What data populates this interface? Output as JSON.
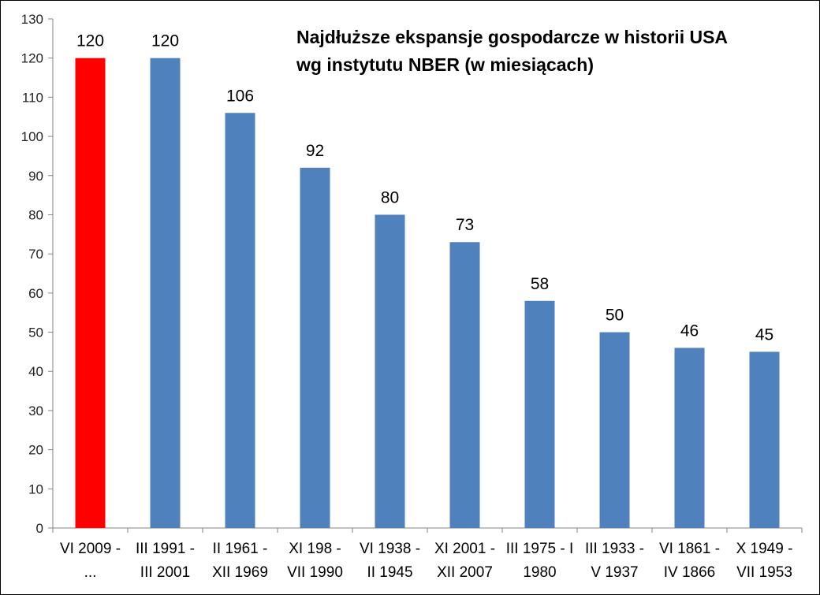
{
  "chart_data": {
    "type": "bar",
    "title_lines": [
      "Najdłuższe ekspansje gospodarcze w historii USA",
      "wg instytutu NBER (w miesiącach)"
    ],
    "categories": [
      [
        "VI 2009 -",
        "..."
      ],
      [
        "III 1991 -",
        "III 2001"
      ],
      [
        "II 1961 -",
        "XII 1969"
      ],
      [
        "XI 198 -",
        "VII 1990"
      ],
      [
        "VI 1938 -",
        "II 1945"
      ],
      [
        "XI 2001 -",
        "XII 2007"
      ],
      [
        "III 1975 - I",
        "1980"
      ],
      [
        "III 1933 -",
        "V 1937"
      ],
      [
        "VI 1861 -",
        "IV 1866"
      ],
      [
        "X 1949 -",
        "VII 1953"
      ]
    ],
    "values": [
      120,
      120,
      106,
      92,
      80,
      73,
      58,
      50,
      46,
      45
    ],
    "data_labels": [
      "120",
      "120",
      "106",
      "92",
      "80",
      "73",
      "58",
      "50",
      "46",
      "45"
    ],
    "ylim": [
      0,
      130
    ],
    "yticks": [
      0,
      10,
      20,
      30,
      40,
      50,
      60,
      70,
      80,
      90,
      100,
      110,
      120,
      130
    ],
    "grid": false,
    "legend": "none",
    "colors": {
      "highlight": "#ff0000",
      "bar": "#4f81bd",
      "axis": "#868686"
    },
    "highlight_index": 0
  }
}
